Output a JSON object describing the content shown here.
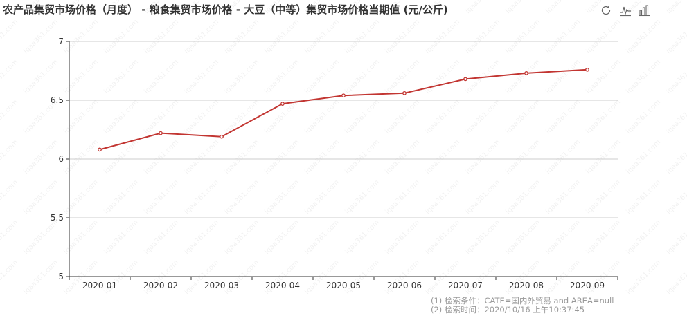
{
  "title": "农产品集贸市场价格（月度） - 粮食集贸市场价格 - 大豆（中等）集贸市场价格当期值 (元/公斤)",
  "toolbox": [
    {
      "name": "restore-icon"
    },
    {
      "name": "line-chart-icon"
    },
    {
      "name": "bar-chart-icon"
    }
  ],
  "watermark": "iqaa361.com",
  "colors": {
    "line": "#c23531",
    "grid": "#cccccc",
    "axis": "#333333",
    "text": "#333333",
    "footnote": "#999999"
  },
  "footnotes": [
    "(1) 检索条件：CATE=国内外贸易 and AREA=null",
    "(2) 检索时间：2020/10/16 上午10:37:45"
  ],
  "chart_data": {
    "type": "line",
    "title": "农产品集贸市场价格（月度） - 粮食集贸市场价格 - 大豆（中等）集贸市场价格当期值 (元/公斤)",
    "categories": [
      "2020-01",
      "2020-02",
      "2020-03",
      "2020-04",
      "2020-05",
      "2020-06",
      "2020-07",
      "2020-08",
      "2020-09"
    ],
    "series": [
      {
        "values": [
          6.08,
          6.22,
          6.19,
          6.47,
          6.54,
          6.56,
          6.68,
          6.73,
          6.76
        ]
      }
    ],
    "ylim": [
      5,
      7
    ],
    "yticks": [
      "5",
      "5.5",
      "6",
      "6.5",
      "7"
    ],
    "grid": true,
    "legend": "none"
  }
}
